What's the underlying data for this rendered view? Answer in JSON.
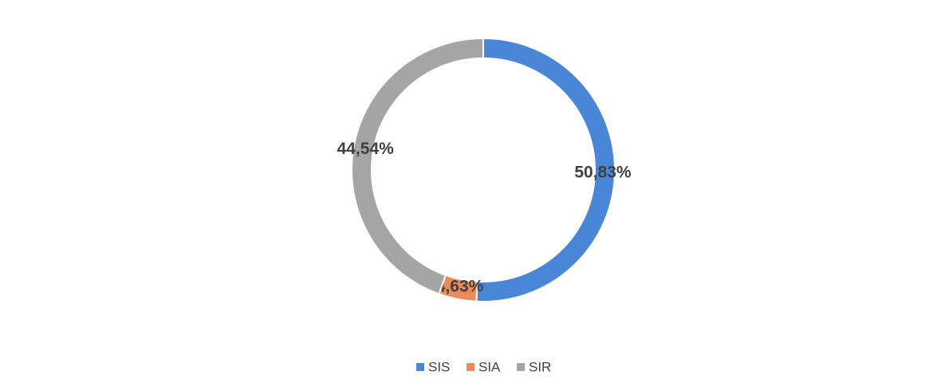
{
  "chart_data": {
    "type": "donut",
    "categories": [
      "SIS",
      "SIA",
      "SIR"
    ],
    "values": [
      50.83,
      4.63,
      44.54
    ],
    "value_labels": [
      "50,83%",
      "4,63%",
      "44,54%"
    ],
    "colors": [
      "#4a86d8",
      "#ed8a5a",
      "#a5a5a5"
    ],
    "legend": "bottom"
  }
}
